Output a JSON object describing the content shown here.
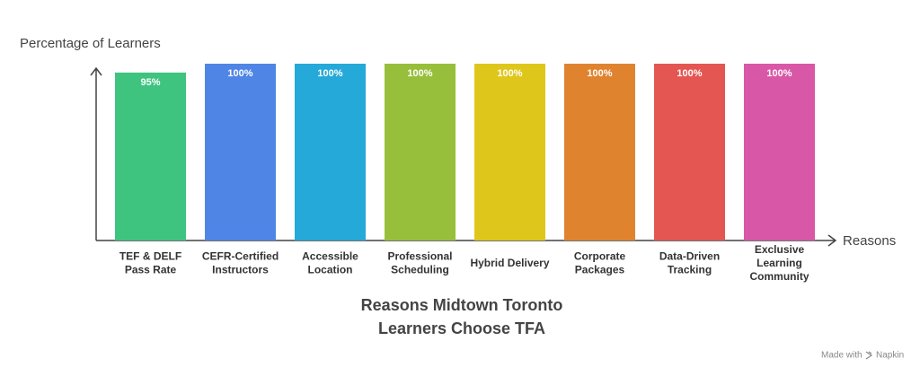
{
  "chart_data": {
    "type": "bar",
    "title": "Reasons Midtown Toronto\nLearners Choose TFA",
    "y_label": "Percentage of Learners",
    "x_label": "Reasons",
    "categories": [
      "TEF & DELF\nPass Rate",
      "CEFR-Certified\nInstructors",
      "Accessible\nLocation",
      "Professional\nScheduling",
      "Hybrid Delivery",
      "Corporate\nPackages",
      "Data-Driven\nTracking",
      "Exclusive\nLearning\nCommunity"
    ],
    "values": [
      95,
      100,
      100,
      100,
      100,
      100,
      100,
      100
    ],
    "value_labels": [
      "95%",
      "100%",
      "100%",
      "100%",
      "100%",
      "100%",
      "100%",
      "100%"
    ],
    "colors": [
      "#3ec47f",
      "#4f86e6",
      "#25a9d8",
      "#97bf3b",
      "#dfc61b",
      "#e0832f",
      "#e45652",
      "#d957a7"
    ],
    "ylim": [
      0,
      100
    ],
    "watermark": [
      "Made with",
      "Napkin"
    ]
  }
}
